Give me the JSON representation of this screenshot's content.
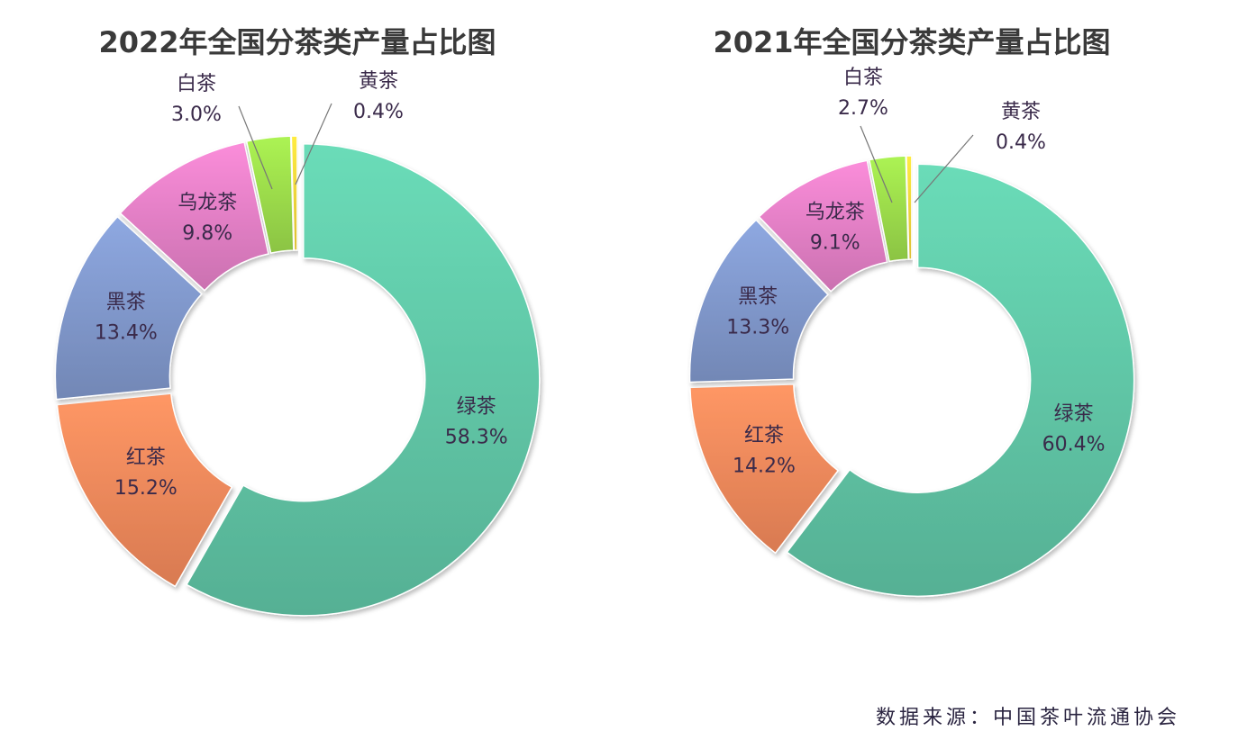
{
  "chart_data": [
    {
      "type": "pie",
      "donut": true,
      "title": "2022年全国分茶类产量占比图",
      "categories": [
        "绿茶",
        "红茶",
        "黑茶",
        "乌龙茶",
        "白茶",
        "黄茶"
      ],
      "values": [
        58.3,
        15.2,
        13.4,
        9.8,
        3.0,
        0.4
      ],
      "labels": [
        "58.3%",
        "15.2%",
        "13.4%",
        "9.8%",
        "3.0%",
        "0.4%"
      ]
    },
    {
      "type": "pie",
      "donut": true,
      "title": "2021年全国分茶类产量占比图",
      "categories": [
        "绿茶",
        "红茶",
        "黑茶",
        "乌龙茶",
        "白茶",
        "黄茶"
      ],
      "values": [
        60.4,
        14.2,
        13.3,
        9.1,
        2.7,
        0.4
      ],
      "labels": [
        "60.4%",
        "14.2%",
        "13.3%",
        "9.1%",
        "2.7%",
        "0.4%"
      ]
    }
  ],
  "colors": [
    "#5fc4a4",
    "#f0875a",
    "#7f96c9",
    "#e07ec3",
    "#9ad94a",
    "#f3d33a"
  ],
  "source": "数据来源：中国茶叶流通协会"
}
